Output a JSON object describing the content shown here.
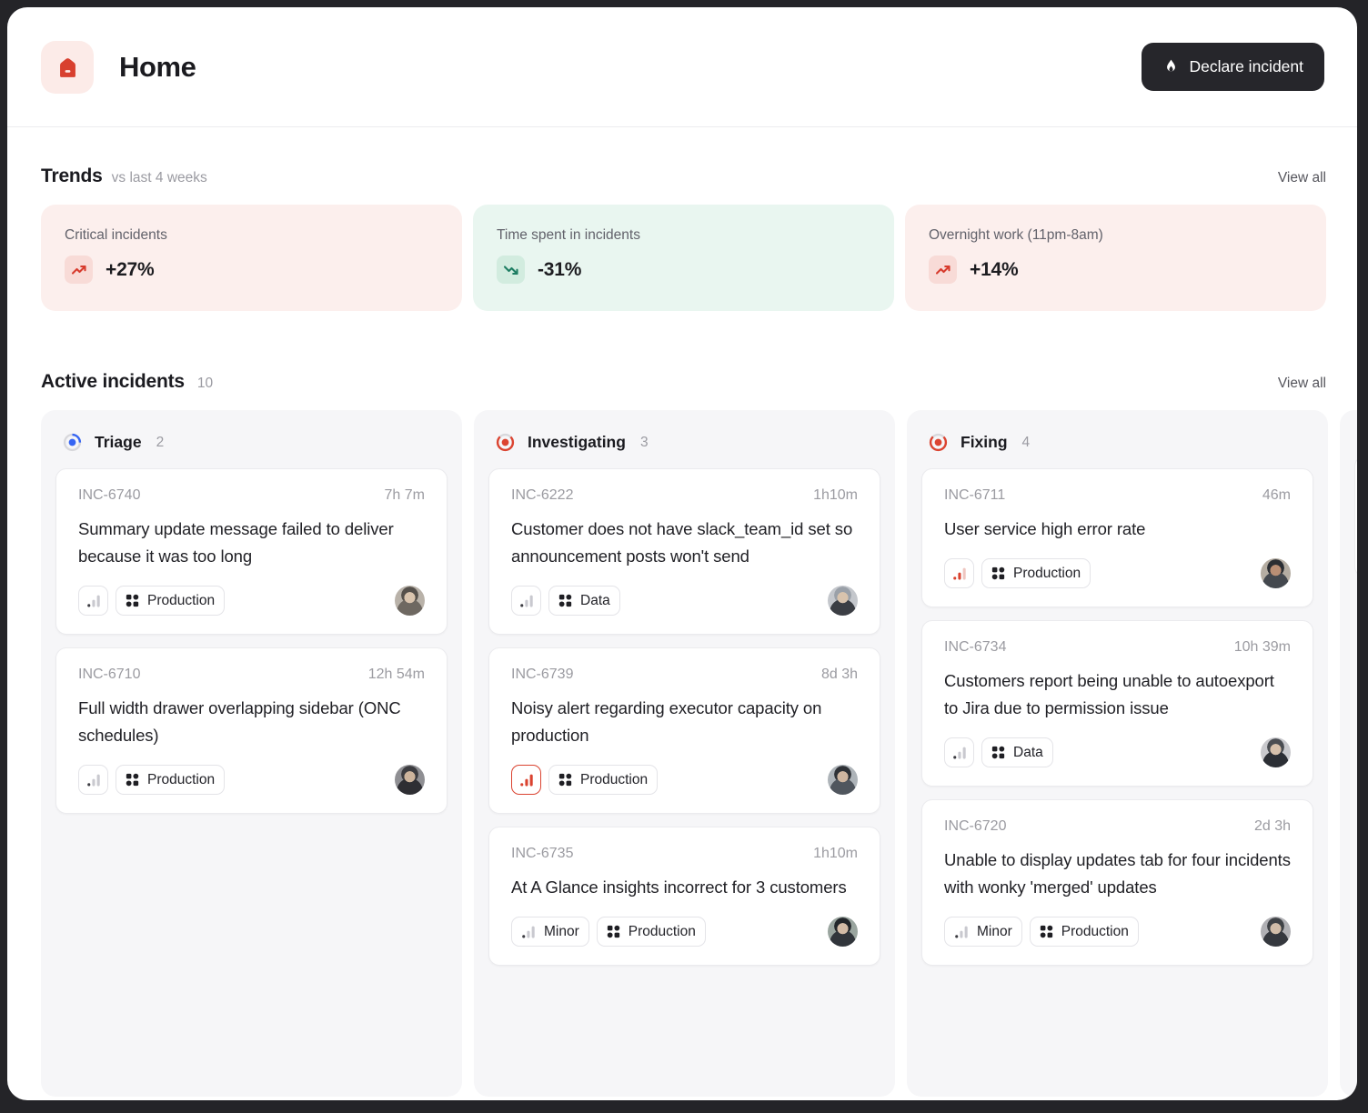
{
  "header": {
    "title": "Home",
    "declare_button": "Declare incident"
  },
  "trends": {
    "title": "Trends",
    "subtitle": "vs last 4 weeks",
    "view_all": "View all",
    "cards": [
      {
        "label": "Critical incidents",
        "value": "+27%",
        "direction": "up",
        "tone": "bad"
      },
      {
        "label": "Time spent in incidents",
        "value": "-31%",
        "direction": "down",
        "tone": "good"
      },
      {
        "label": "Overnight work (11pm-8am)",
        "value": "+14%",
        "direction": "up",
        "tone": "bad"
      }
    ],
    "colors": {
      "bad_bg": "#fcefed",
      "bad_icon_bg": "#f8dbd7",
      "bad_arrow": "#d73b2d",
      "good_bg": "#e9f6f0",
      "good_icon_bg": "#d2ecdf",
      "good_arrow": "#1d7d62"
    }
  },
  "board": {
    "title": "Active incidents",
    "count": "10",
    "view_all": "View all",
    "ring_base_color": "#d8d8dc",
    "columns": [
      {
        "name": "Triage",
        "count": "2",
        "status_color": "#3665f3",
        "ring_style": "quarter",
        "cards": [
          {
            "id": "INC-6740",
            "age": "7h 7m",
            "title": "Summary update message failed to deliver because it was too long",
            "severity": "default",
            "severity_label": "",
            "tag": "Production",
            "avatar": "a"
          },
          {
            "id": "INC-6710",
            "age": "12h 54m",
            "title": "Full width drawer overlapping sidebar (ONC schedules)",
            "severity": "default",
            "severity_label": "",
            "tag": "Production",
            "avatar": "b"
          }
        ]
      },
      {
        "name": "Investigating",
        "count": "3",
        "status_color": "#dc4431",
        "ring_style": "three-quarter",
        "cards": [
          {
            "id": "INC-6222",
            "age": "1h10m",
            "title": "Customer does not have slack_team_id set so announcement posts won't send",
            "severity": "default",
            "severity_label": "",
            "tag": "Data",
            "avatar": "c"
          },
          {
            "id": "INC-6739",
            "age": "8d 3h",
            "title": "Noisy alert regarding executor capacity on production",
            "severity": "critical",
            "severity_label": "",
            "tag": "Production",
            "avatar": "d"
          },
          {
            "id": "INC-6735",
            "age": "1h10m",
            "title": "At A Glance insights incorrect for 3 customers",
            "severity": "minor",
            "severity_label": "Minor",
            "tag": "Production",
            "avatar": "e"
          }
        ]
      },
      {
        "name": "Fixing",
        "count": "4",
        "status_color": "#dc4431",
        "ring_style": "three-quarter",
        "cards": [
          {
            "id": "INC-6711",
            "age": "46m",
            "title": "User service high error rate",
            "severity": "major",
            "severity_label": "",
            "tag": "Production",
            "avatar": "f"
          },
          {
            "id": "INC-6734",
            "age": "10h 39m",
            "title": "Customers report being unable to autoexport to Jira due to permission issue",
            "severity": "default",
            "severity_label": "",
            "tag": "Data",
            "avatar": "g"
          },
          {
            "id": "INC-6720",
            "age": "2d 3h",
            "title": "Unable to display updates tab for four incidents with wonky 'merged' updates",
            "severity": "minor",
            "severity_label": "Minor",
            "tag": "Production",
            "avatar": "h"
          }
        ]
      }
    ],
    "partial_column_visible": true,
    "severity_colors": {
      "default_dot": "#3c3c42",
      "default_bar": "#c9c9cf",
      "critical": "#da4330",
      "major": "#da4330",
      "major_faded": "#efc6c0"
    }
  }
}
